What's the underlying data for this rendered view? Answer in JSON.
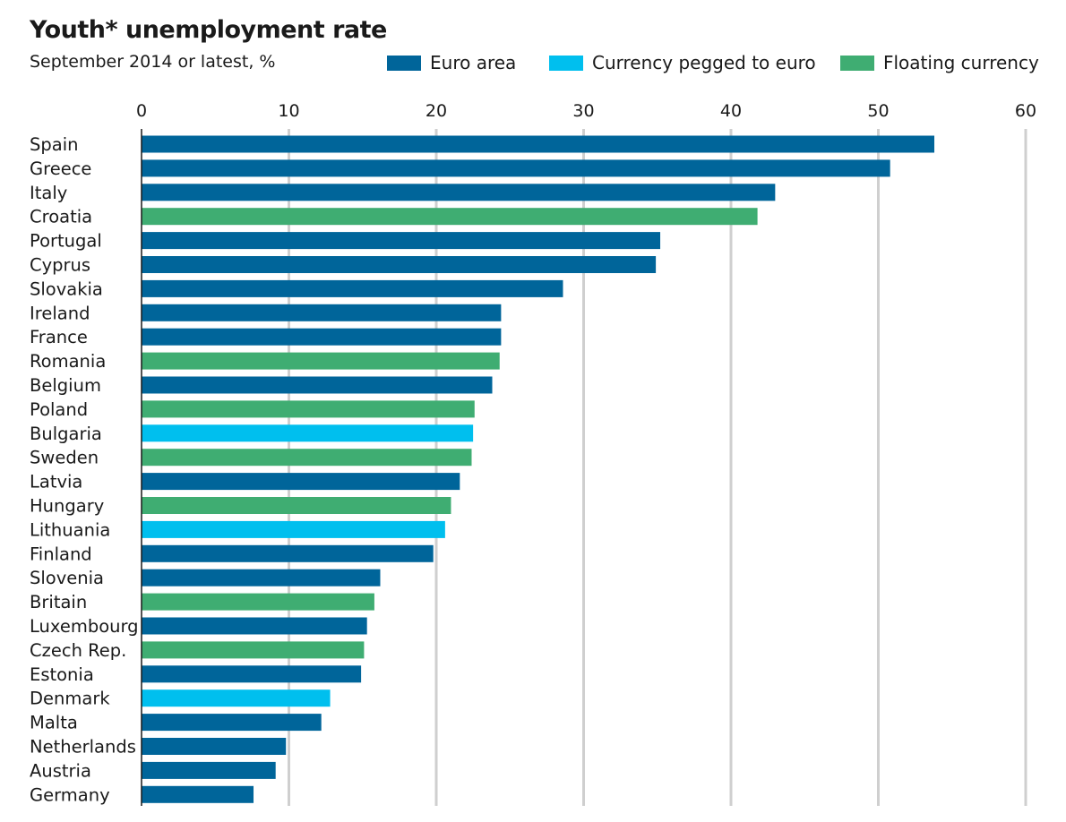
{
  "header": {
    "title": "Youth* unemployment rate",
    "subtitle": "September 2014 or latest, %"
  },
  "legend": [
    {
      "label": "Euro area",
      "group": "euro",
      "color": "#00659a"
    },
    {
      "label": "Currency pegged to euro",
      "group": "pegged",
      "color": "#00bfee"
    },
    {
      "label": "Floating currency",
      "group": "floating",
      "color": "#3fad72"
    }
  ],
  "chart_data": {
    "type": "bar",
    "orientation": "horizontal",
    "xlim": [
      0,
      60
    ],
    "xticks": [
      0,
      10,
      20,
      30,
      40,
      50,
      60
    ],
    "grid": true,
    "legend_position": "top-right",
    "colors": {
      "euro": "#00659a",
      "pegged": "#00bfee",
      "floating": "#3fad72"
    },
    "categories": [
      "Spain",
      "Greece",
      "Italy",
      "Croatia",
      "Portugal",
      "Cyprus",
      "Slovakia",
      "Ireland",
      "France",
      "Romania",
      "Belgium",
      "Poland",
      "Bulgaria",
      "Sweden",
      "Latvia",
      "Hungary",
      "Lithuania",
      "Finland",
      "Slovenia",
      "Britain",
      "Luxembourg",
      "Czech Rep.",
      "Estonia",
      "Denmark",
      "Malta",
      "Netherlands",
      "Austria",
      "Germany"
    ],
    "values": [
      53.8,
      50.8,
      43.0,
      41.8,
      35.2,
      34.9,
      28.6,
      24.4,
      24.4,
      24.3,
      23.8,
      22.6,
      22.5,
      22.4,
      21.6,
      21.0,
      20.6,
      19.8,
      16.2,
      15.8,
      15.3,
      15.1,
      14.9,
      12.8,
      12.2,
      9.8,
      9.1,
      7.6
    ],
    "groups": [
      "euro",
      "euro",
      "euro",
      "floating",
      "euro",
      "euro",
      "euro",
      "euro",
      "euro",
      "floating",
      "euro",
      "floating",
      "pegged",
      "floating",
      "euro",
      "floating",
      "pegged",
      "euro",
      "euro",
      "floating",
      "euro",
      "floating",
      "euro",
      "pegged",
      "euro",
      "euro",
      "euro",
      "euro"
    ]
  }
}
